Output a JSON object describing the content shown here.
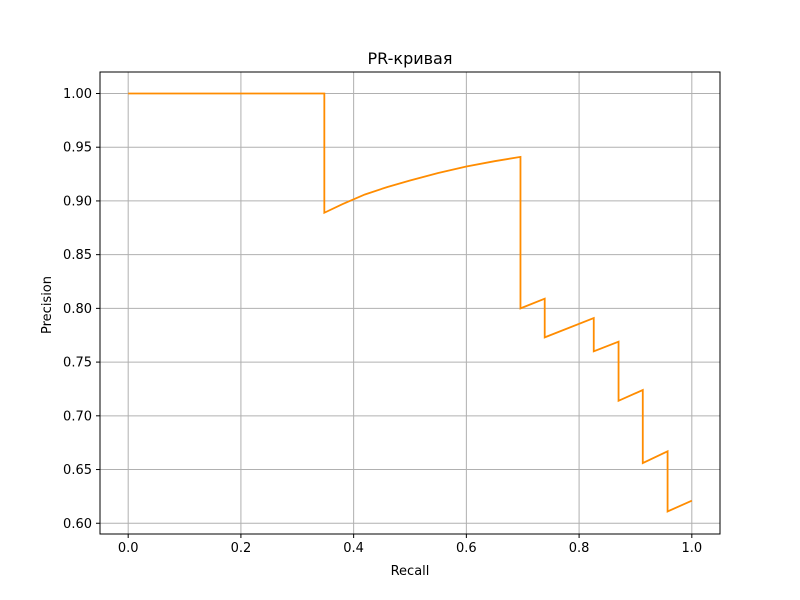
{
  "chart_data": {
    "type": "line",
    "title": "PR-кривая",
    "xlabel": "Recall",
    "ylabel": "Precision",
    "xlim": [
      -0.05,
      1.05
    ],
    "ylim": [
      0.59,
      1.02
    ],
    "grid": true,
    "xticks": [
      0.0,
      0.2,
      0.4,
      0.6,
      0.8,
      1.0
    ],
    "xtick_labels": [
      "0.0",
      "0.2",
      "0.4",
      "0.6",
      "0.8",
      "1.0"
    ],
    "yticks": [
      0.6,
      0.65,
      0.7,
      0.75,
      0.8,
      0.85,
      0.9,
      0.95,
      1.0
    ],
    "ytick_labels": [
      "0.60",
      "0.65",
      "0.70",
      "0.75",
      "0.80",
      "0.85",
      "0.90",
      "0.95",
      "1.00"
    ],
    "series": [
      {
        "color": "#ff8c00",
        "points": [
          [
            0.0,
            1.0
          ],
          [
            0.348,
            1.0
          ],
          [
            0.348,
            0.889
          ],
          [
            0.38,
            0.897
          ],
          [
            0.42,
            0.906
          ],
          [
            0.46,
            0.913
          ],
          [
            0.5,
            0.919
          ],
          [
            0.55,
            0.926
          ],
          [
            0.6,
            0.932
          ],
          [
            0.65,
            0.937
          ],
          [
            0.696,
            0.941
          ],
          [
            0.696,
            0.8
          ],
          [
            0.739,
            0.809
          ],
          [
            0.739,
            0.773
          ],
          [
            0.826,
            0.791
          ],
          [
            0.826,
            0.76
          ],
          [
            0.87,
            0.769
          ],
          [
            0.87,
            0.714
          ],
          [
            0.913,
            0.724
          ],
          [
            0.913,
            0.656
          ],
          [
            0.957,
            0.667
          ],
          [
            0.957,
            0.611
          ],
          [
            1.0,
            0.621
          ]
        ]
      }
    ]
  }
}
